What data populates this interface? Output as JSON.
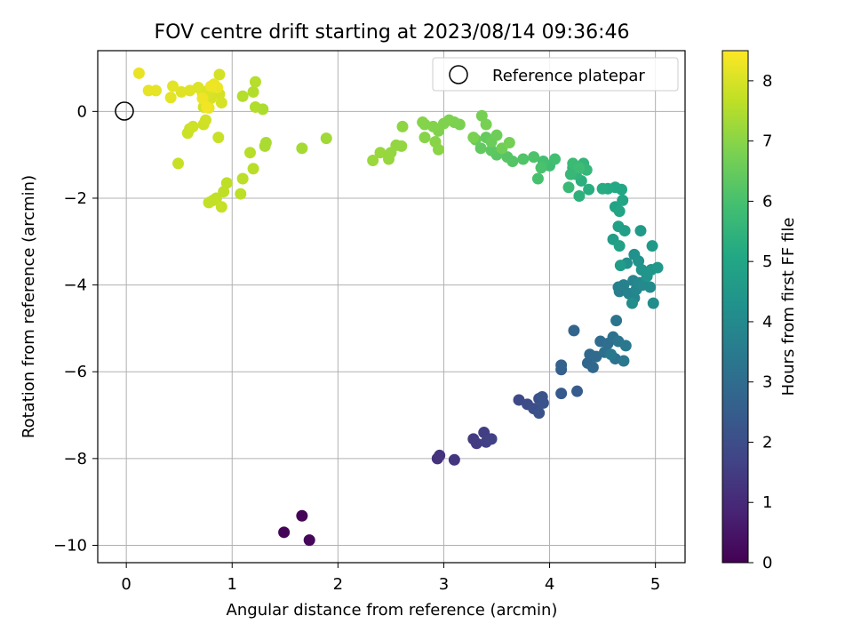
{
  "chart_data": {
    "type": "scatter",
    "title": "FOV centre drift starting at 2023/08/14 09:36:46",
    "xlabel": "Angular distance from reference (arcmin)",
    "ylabel": "Rotation from reference (arcmin)",
    "xlim": [
      -0.27,
      5.28
    ],
    "ylim": [
      -10.4,
      1.4
    ],
    "xticks": [
      0,
      1,
      2,
      3,
      4,
      5
    ],
    "yticks": [
      0,
      -2,
      -4,
      -6,
      -8,
      -10
    ],
    "grid": true,
    "legend": {
      "placement": "top-right",
      "entries": [
        "Reference platepar"
      ]
    },
    "reference_point": {
      "x": 0,
      "y": 0,
      "marker": "open-circle",
      "label": "Reference platepar"
    },
    "colorbar": {
      "label": "Hours from first FF file",
      "min": 0,
      "max": 8.5,
      "ticks": [
        0,
        1,
        2,
        3,
        4,
        5,
        6,
        7,
        8
      ],
      "colormap": "viridis"
    },
    "series": [
      {
        "columns": [
          "x",
          "y",
          "hours"
        ],
        "points": [
          [
            1.66,
            -9.32,
            0.05
          ],
          [
            1.49,
            -9.7,
            0.1
          ],
          [
            1.73,
            -9.88,
            0.15
          ],
          [
            2.94,
            -8.0,
            1.2
          ],
          [
            2.96,
            -7.93,
            1.25
          ],
          [
            3.1,
            -8.03,
            1.3
          ],
          [
            3.28,
            -7.55,
            1.45
          ],
          [
            3.31,
            -7.65,
            1.5
          ],
          [
            3.38,
            -7.4,
            1.55
          ],
          [
            3.4,
            -7.62,
            1.6
          ],
          [
            3.45,
            -7.55,
            1.65
          ],
          [
            3.71,
            -6.65,
            1.9
          ],
          [
            3.79,
            -6.75,
            1.95
          ],
          [
            3.85,
            -6.85,
            2.0
          ],
          [
            3.9,
            -6.62,
            2.05
          ],
          [
            3.9,
            -6.95,
            2.1
          ],
          [
            3.94,
            -6.72,
            2.15
          ],
          [
            3.93,
            -6.58,
            2.2
          ],
          [
            4.11,
            -6.5,
            2.4
          ],
          [
            4.26,
            -6.45,
            2.5
          ],
          [
            4.11,
            -5.95,
            2.6
          ],
          [
            4.11,
            -5.85,
            2.65
          ],
          [
            4.23,
            -5.05,
            2.75
          ],
          [
            4.36,
            -5.8,
            2.8
          ],
          [
            4.41,
            -5.9,
            2.85
          ],
          [
            4.38,
            -5.6,
            2.9
          ],
          [
            4.44,
            -5.65,
            2.95
          ],
          [
            4.48,
            -5.3,
            3.0
          ],
          [
            4.55,
            -5.35,
            3.05
          ],
          [
            4.52,
            -5.55,
            3.1
          ],
          [
            4.6,
            -5.2,
            3.15
          ],
          [
            4.62,
            -5.7,
            3.2
          ],
          [
            4.63,
            -4.82,
            3.25
          ],
          [
            4.65,
            -5.3,
            3.3
          ],
          [
            4.7,
            -5.75,
            3.35
          ],
          [
            4.72,
            -5.4,
            3.4
          ],
          [
            4.58,
            -5.6,
            3.45
          ],
          [
            4.65,
            -4.05,
            3.6
          ],
          [
            4.66,
            -4.15,
            3.65
          ],
          [
            4.7,
            -4.0,
            3.7
          ],
          [
            4.75,
            -4.2,
            3.75
          ],
          [
            4.79,
            -3.9,
            3.8
          ],
          [
            4.8,
            -4.3,
            3.85
          ],
          [
            4.82,
            -4.1,
            3.9
          ],
          [
            4.85,
            -3.95,
            3.95
          ],
          [
            4.88,
            -4.0,
            4.0
          ],
          [
            4.95,
            -4.05,
            4.05
          ],
          [
            4.98,
            -4.42,
            4.1
          ],
          [
            4.78,
            -4.42,
            4.15
          ],
          [
            4.73,
            -3.5,
            4.2
          ],
          [
            4.8,
            -3.3,
            4.25
          ],
          [
            4.84,
            -3.45,
            4.3
          ],
          [
            4.87,
            -3.65,
            4.35
          ],
          [
            4.92,
            -3.8,
            4.4
          ],
          [
            4.96,
            -3.65,
            4.45
          ],
          [
            5.02,
            -3.6,
            4.5
          ],
          [
            4.97,
            -3.1,
            4.55
          ],
          [
            4.86,
            -2.75,
            4.6
          ],
          [
            4.67,
            -3.55,
            4.65
          ],
          [
            4.6,
            -2.95,
            4.7
          ],
          [
            4.65,
            -2.65,
            4.75
          ],
          [
            4.71,
            -2.75,
            4.8
          ],
          [
            4.66,
            -3.1,
            4.85
          ],
          [
            4.62,
            -2.2,
            4.9
          ],
          [
            4.66,
            -2.3,
            4.95
          ],
          [
            4.69,
            -2.05,
            5.0
          ],
          [
            4.68,
            -1.8,
            5.05
          ],
          [
            4.62,
            -1.75,
            5.1
          ],
          [
            4.55,
            -1.78,
            5.15
          ],
          [
            4.5,
            -1.78,
            5.2
          ],
          [
            4.37,
            -1.8,
            5.3
          ],
          [
            4.3,
            -1.6,
            5.35
          ],
          [
            4.28,
            -1.95,
            5.4
          ],
          [
            4.22,
            -1.3,
            5.45
          ],
          [
            4.25,
            -1.45,
            5.5
          ],
          [
            4.32,
            -1.2,
            5.55
          ],
          [
            4.35,
            -1.35,
            5.6
          ],
          [
            4.2,
            -1.45,
            5.65
          ],
          [
            4.18,
            -1.75,
            5.7
          ],
          [
            4.22,
            -1.2,
            5.75
          ],
          [
            4.28,
            -1.3,
            5.8
          ],
          [
            4.0,
            -1.25,
            5.85
          ],
          [
            4.05,
            -1.1,
            5.9
          ],
          [
            3.94,
            -1.15,
            5.95
          ],
          [
            3.89,
            -1.55,
            6.0
          ],
          [
            3.92,
            -1.3,
            6.05
          ],
          [
            3.85,
            -1.05,
            6.1
          ],
          [
            3.75,
            -1.1,
            6.15
          ],
          [
            3.65,
            -1.15,
            6.2
          ],
          [
            3.6,
            -1.05,
            6.25
          ],
          [
            3.5,
            -1.0,
            6.3
          ],
          [
            3.45,
            -0.9,
            6.35
          ],
          [
            3.35,
            -0.85,
            6.4
          ],
          [
            3.4,
            -0.6,
            6.45
          ],
          [
            3.3,
            -0.65,
            6.5
          ],
          [
            3.45,
            -0.7,
            6.55
          ],
          [
            3.5,
            -0.55,
            6.6
          ],
          [
            3.55,
            -0.85,
            6.65
          ],
          [
            3.62,
            -0.72,
            6.7
          ],
          [
            3.36,
            -0.1,
            6.72
          ],
          [
            3.4,
            -0.3,
            6.75
          ],
          [
            3.28,
            -0.6,
            6.78
          ],
          [
            3.15,
            -0.3,
            6.8
          ],
          [
            3.1,
            -0.25,
            6.82
          ],
          [
            3.05,
            -0.2,
            6.84
          ],
          [
            3.0,
            -0.28,
            6.86
          ],
          [
            2.95,
            -0.45,
            6.88
          ],
          [
            2.9,
            -0.35,
            6.9
          ],
          [
            2.82,
            -0.3,
            6.92
          ],
          [
            2.8,
            -0.25,
            6.94
          ],
          [
            2.82,
            -0.6,
            6.96
          ],
          [
            2.92,
            -0.7,
            6.98
          ],
          [
            2.95,
            -0.88,
            7.0
          ],
          [
            2.61,
            -0.35,
            7.05
          ],
          [
            2.6,
            -0.8,
            7.1
          ],
          [
            2.55,
            -0.78,
            7.12
          ],
          [
            2.5,
            -0.95,
            7.14
          ],
          [
            2.48,
            -1.1,
            7.16
          ],
          [
            2.4,
            -0.95,
            7.18
          ],
          [
            2.33,
            -1.13,
            7.2
          ],
          [
            1.89,
            -0.62,
            7.3
          ],
          [
            1.66,
            -0.85,
            7.35
          ],
          [
            1.32,
            -0.72,
            7.4
          ],
          [
            1.31,
            -0.8,
            7.42
          ],
          [
            1.29,
            0.05,
            7.45
          ],
          [
            1.22,
            0.1,
            7.5
          ],
          [
            1.2,
            0.45,
            7.52
          ],
          [
            1.1,
            0.35,
            7.54
          ],
          [
            1.22,
            0.68,
            7.56
          ],
          [
            1.17,
            -0.95,
            7.58
          ],
          [
            1.2,
            -1.32,
            7.6
          ],
          [
            1.1,
            -1.55,
            7.62
          ],
          [
            1.08,
            -1.9,
            7.64
          ],
          [
            0.95,
            -1.65,
            7.66
          ],
          [
            0.92,
            -1.85,
            7.68
          ],
          [
            0.85,
            -2.0,
            7.7
          ],
          [
            0.82,
            -2.05,
            7.72
          ],
          [
            0.78,
            -2.1,
            7.74
          ],
          [
            0.9,
            -2.2,
            7.76
          ],
          [
            0.49,
            -1.2,
            7.78
          ],
          [
            0.87,
            -0.6,
            7.8
          ],
          [
            0.58,
            -0.5,
            7.82
          ],
          [
            0.6,
            -0.4,
            7.84
          ],
          [
            0.63,
            -0.35,
            7.86
          ],
          [
            0.73,
            -0.3,
            7.88
          ],
          [
            0.75,
            -0.2,
            7.9
          ],
          [
            0.73,
            0.1,
            7.92
          ],
          [
            0.88,
            0.85,
            7.94
          ],
          [
            0.88,
            0.4,
            7.96
          ],
          [
            0.9,
            0.2,
            7.98
          ],
          [
            0.8,
            0.3,
            8.0
          ],
          [
            0.78,
            0.5,
            8.02
          ],
          [
            0.75,
            0.35,
            8.04
          ],
          [
            0.72,
            0.42,
            8.06
          ],
          [
            0.68,
            0.55,
            8.08
          ],
          [
            0.6,
            0.48,
            8.1
          ],
          [
            0.52,
            0.45,
            8.12
          ],
          [
            0.42,
            0.32,
            8.14
          ],
          [
            0.44,
            0.58,
            8.16
          ],
          [
            0.28,
            0.48,
            8.18
          ],
          [
            0.21,
            0.48,
            8.2
          ],
          [
            0.12,
            0.88,
            8.22
          ],
          [
            0.78,
            0.08,
            8.24
          ],
          [
            0.83,
            0.63,
            8.26
          ],
          [
            0.86,
            0.55,
            8.28
          ],
          [
            0.8,
            0.58,
            8.3
          ],
          [
            0.72,
            0.3,
            8.32
          ],
          [
            0.76,
            0.1,
            8.34
          ]
        ]
      }
    ]
  }
}
